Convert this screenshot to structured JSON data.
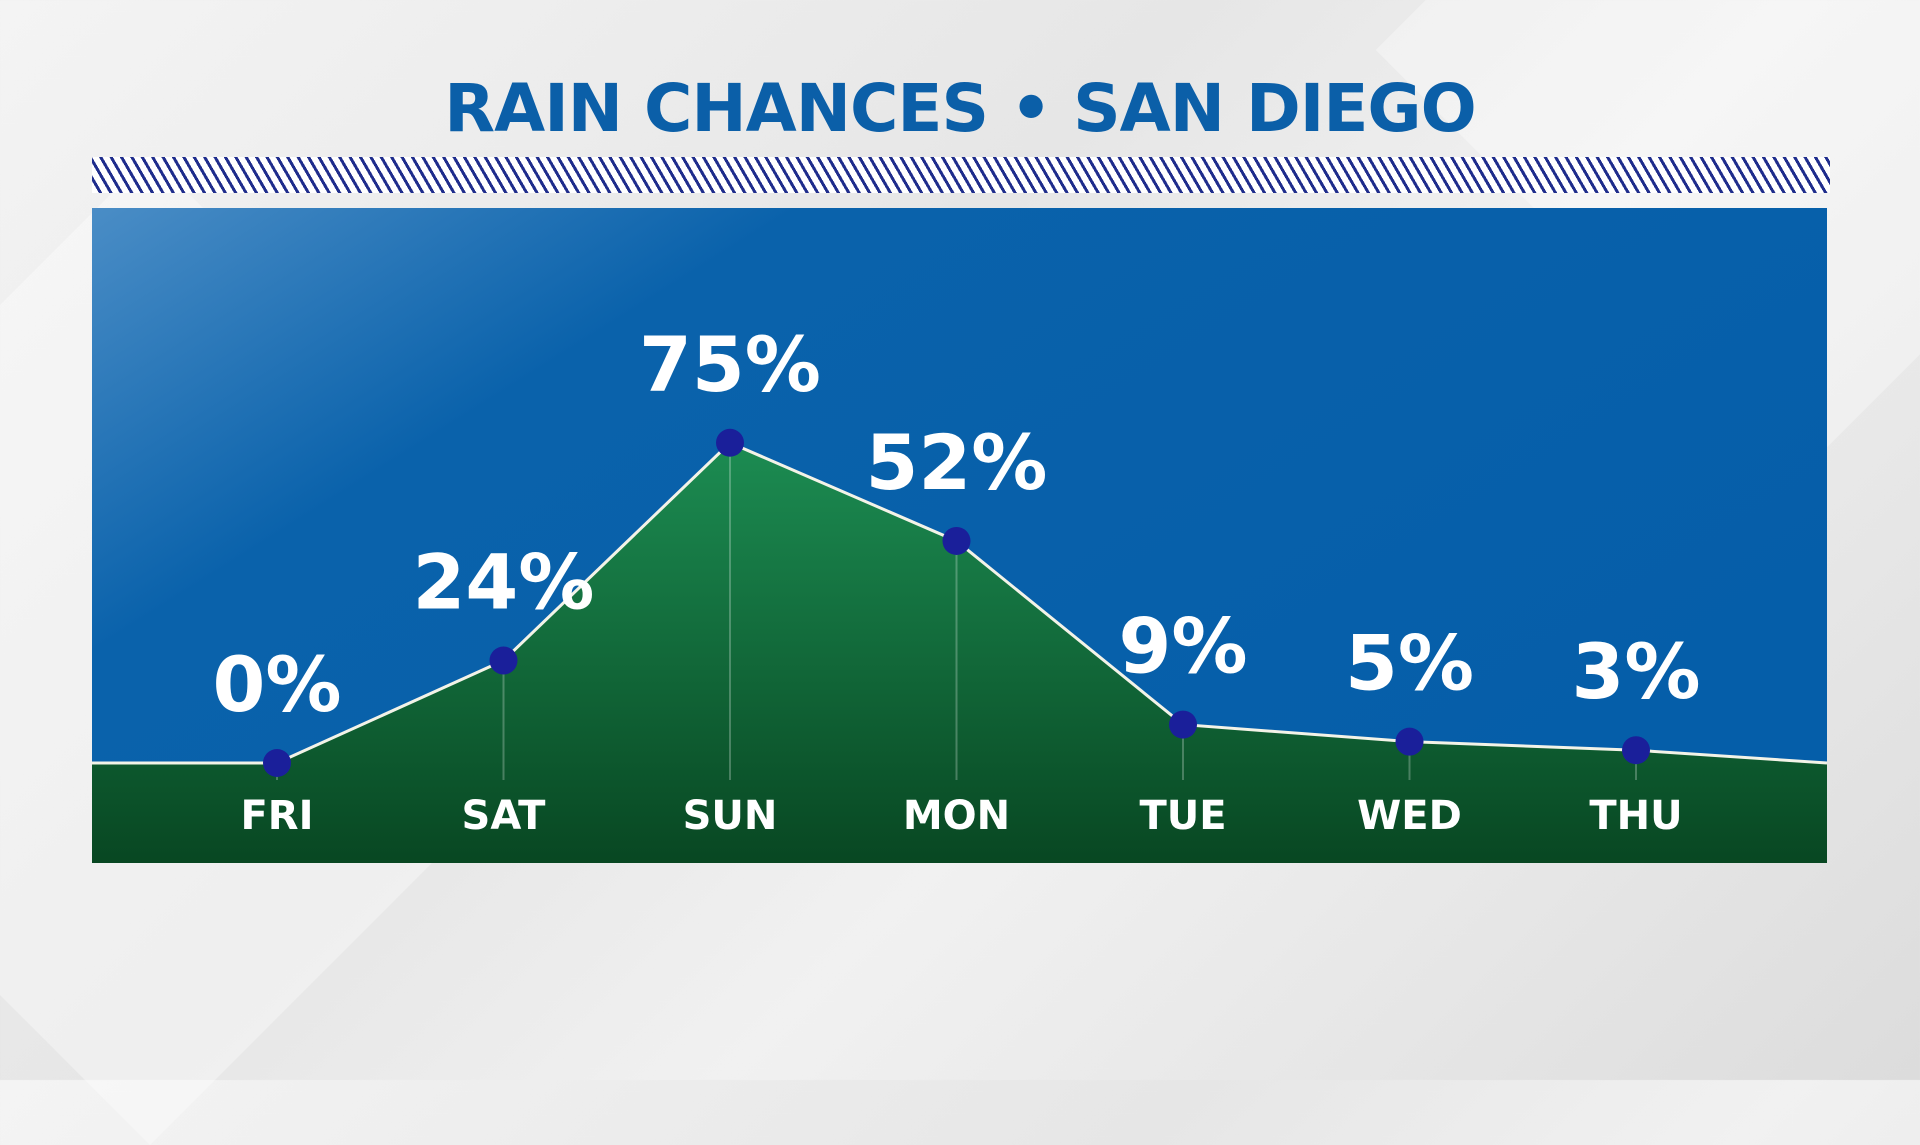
{
  "header": {
    "title": "RAIN CHANCES • SAN DIEGO"
  },
  "colors": {
    "title": "#0b5fa8",
    "sky": "#065fa9",
    "fill_top": "#1b8a50",
    "fill_bottom": "#0a4a26",
    "point": "#1a1f9a",
    "line": "#f3f3e8",
    "hatch": "#1f2d8c"
  },
  "chart_data": {
    "type": "area",
    "title": "RAIN CHANCES • SAN DIEGO",
    "categories": [
      "FRI",
      "SAT",
      "SUN",
      "MON",
      "TUE",
      "WED",
      "THU"
    ],
    "values": [
      0,
      24,
      75,
      52,
      9,
      5,
      3
    ],
    "labels": [
      "0%",
      "24%",
      "75%",
      "52%",
      "9%",
      "5%",
      "3%"
    ],
    "unit": "%",
    "grid": false,
    "legend": "none"
  }
}
